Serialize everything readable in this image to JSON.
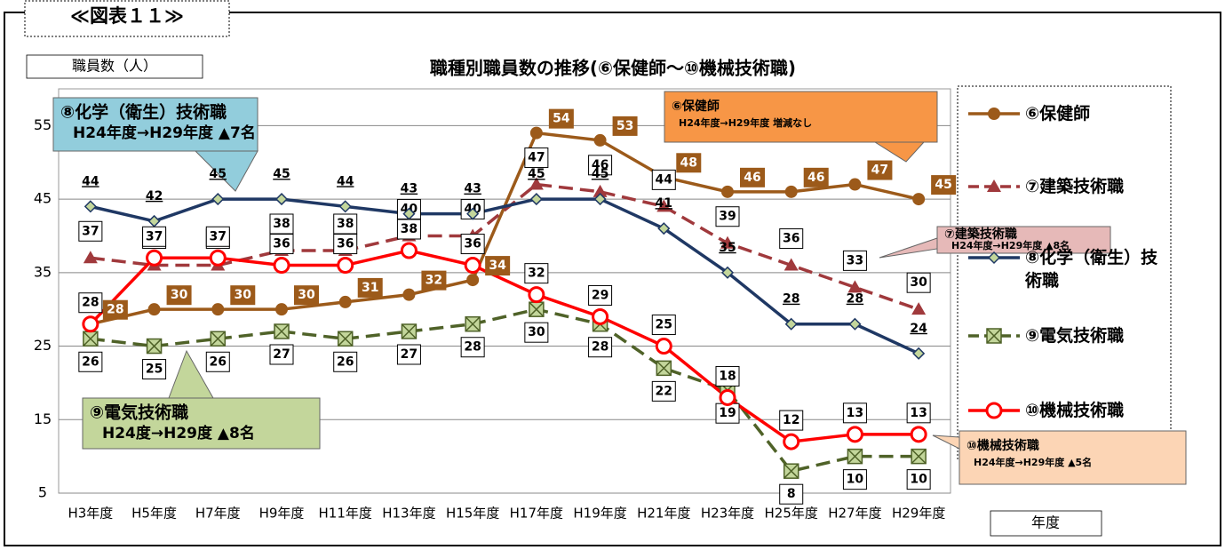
{
  "header": "≪図表１１≫",
  "chart_data": {
    "type": "line",
    "title": "職種別職員数の推移(⑥保健師～⑩機械技術職)",
    "y_label": "職員数（人）",
    "x_label": "年度",
    "categories": [
      "H3年度",
      "H5年度",
      "H7年度",
      "H9年度",
      "H11年度",
      "H13年度",
      "H15年度",
      "H17年度",
      "H19年度",
      "H21年度",
      "H23年度",
      "H25年度",
      "H27年度",
      "H29年度"
    ],
    "ylim": [
      5,
      60
    ],
    "yticks": [
      5,
      15,
      25,
      35,
      45,
      55
    ],
    "grid": true,
    "legend": "right",
    "series": [
      {
        "name": "⑥保健師",
        "color": "#9c5a1a",
        "marker": "circle",
        "dash": false,
        "values": [
          28,
          30,
          30,
          30,
          31,
          32,
          34,
          54,
          53,
          48,
          46,
          46,
          47,
          45
        ]
      },
      {
        "name": "⑦建築技術職",
        "color": "#a0393c",
        "marker": "triangle",
        "dash": true,
        "values": [
          37,
          36,
          36,
          38,
          38,
          40,
          40,
          47,
          46,
          44,
          39,
          36,
          33,
          30
        ]
      },
      {
        "name": "⑧化学（衛生）技術職",
        "color": "#1f3864",
        "marker": "diamond",
        "dash": false,
        "values": [
          44,
          42,
          45,
          45,
          44,
          43,
          43,
          45,
          45,
          41,
          35,
          28,
          28,
          24
        ]
      },
      {
        "name": "⑨電気技術職",
        "color": "#4f6228",
        "marker": "square-x",
        "dash": true,
        "values": [
          26,
          25,
          26,
          27,
          26,
          27,
          28,
          30,
          28,
          22,
          19,
          8,
          10,
          10
        ]
      },
      {
        "name": "⑩機械技術職",
        "color": "#ff0000",
        "marker": "circle-open",
        "dash": false,
        "values": [
          28,
          37,
          37,
          36,
          36,
          38,
          36,
          32,
          29,
          25,
          18,
          12,
          13,
          13
        ]
      }
    ],
    "annotations": [
      {
        "title": "⑧化学（衛生）技術職",
        "text": "H24年度→H29年度 ▲7名",
        "color": "#92cddc"
      },
      {
        "title": "⑥保健師",
        "text": "H24年度→H29年度 増減なし",
        "color": "#f79646"
      },
      {
        "title": "⑦建築技術職",
        "text": "H24年度→H29年度 ▲8名",
        "color": "#e6b9b8"
      },
      {
        "title": "⑨電気技術職",
        "text": "H24度→H29度 ▲8名",
        "color": "#c3d69b"
      },
      {
        "title": "⑩機械技術職",
        "text": "H24年度→H29年度 ▲5名",
        "color": "#fcd5b5"
      }
    ]
  }
}
